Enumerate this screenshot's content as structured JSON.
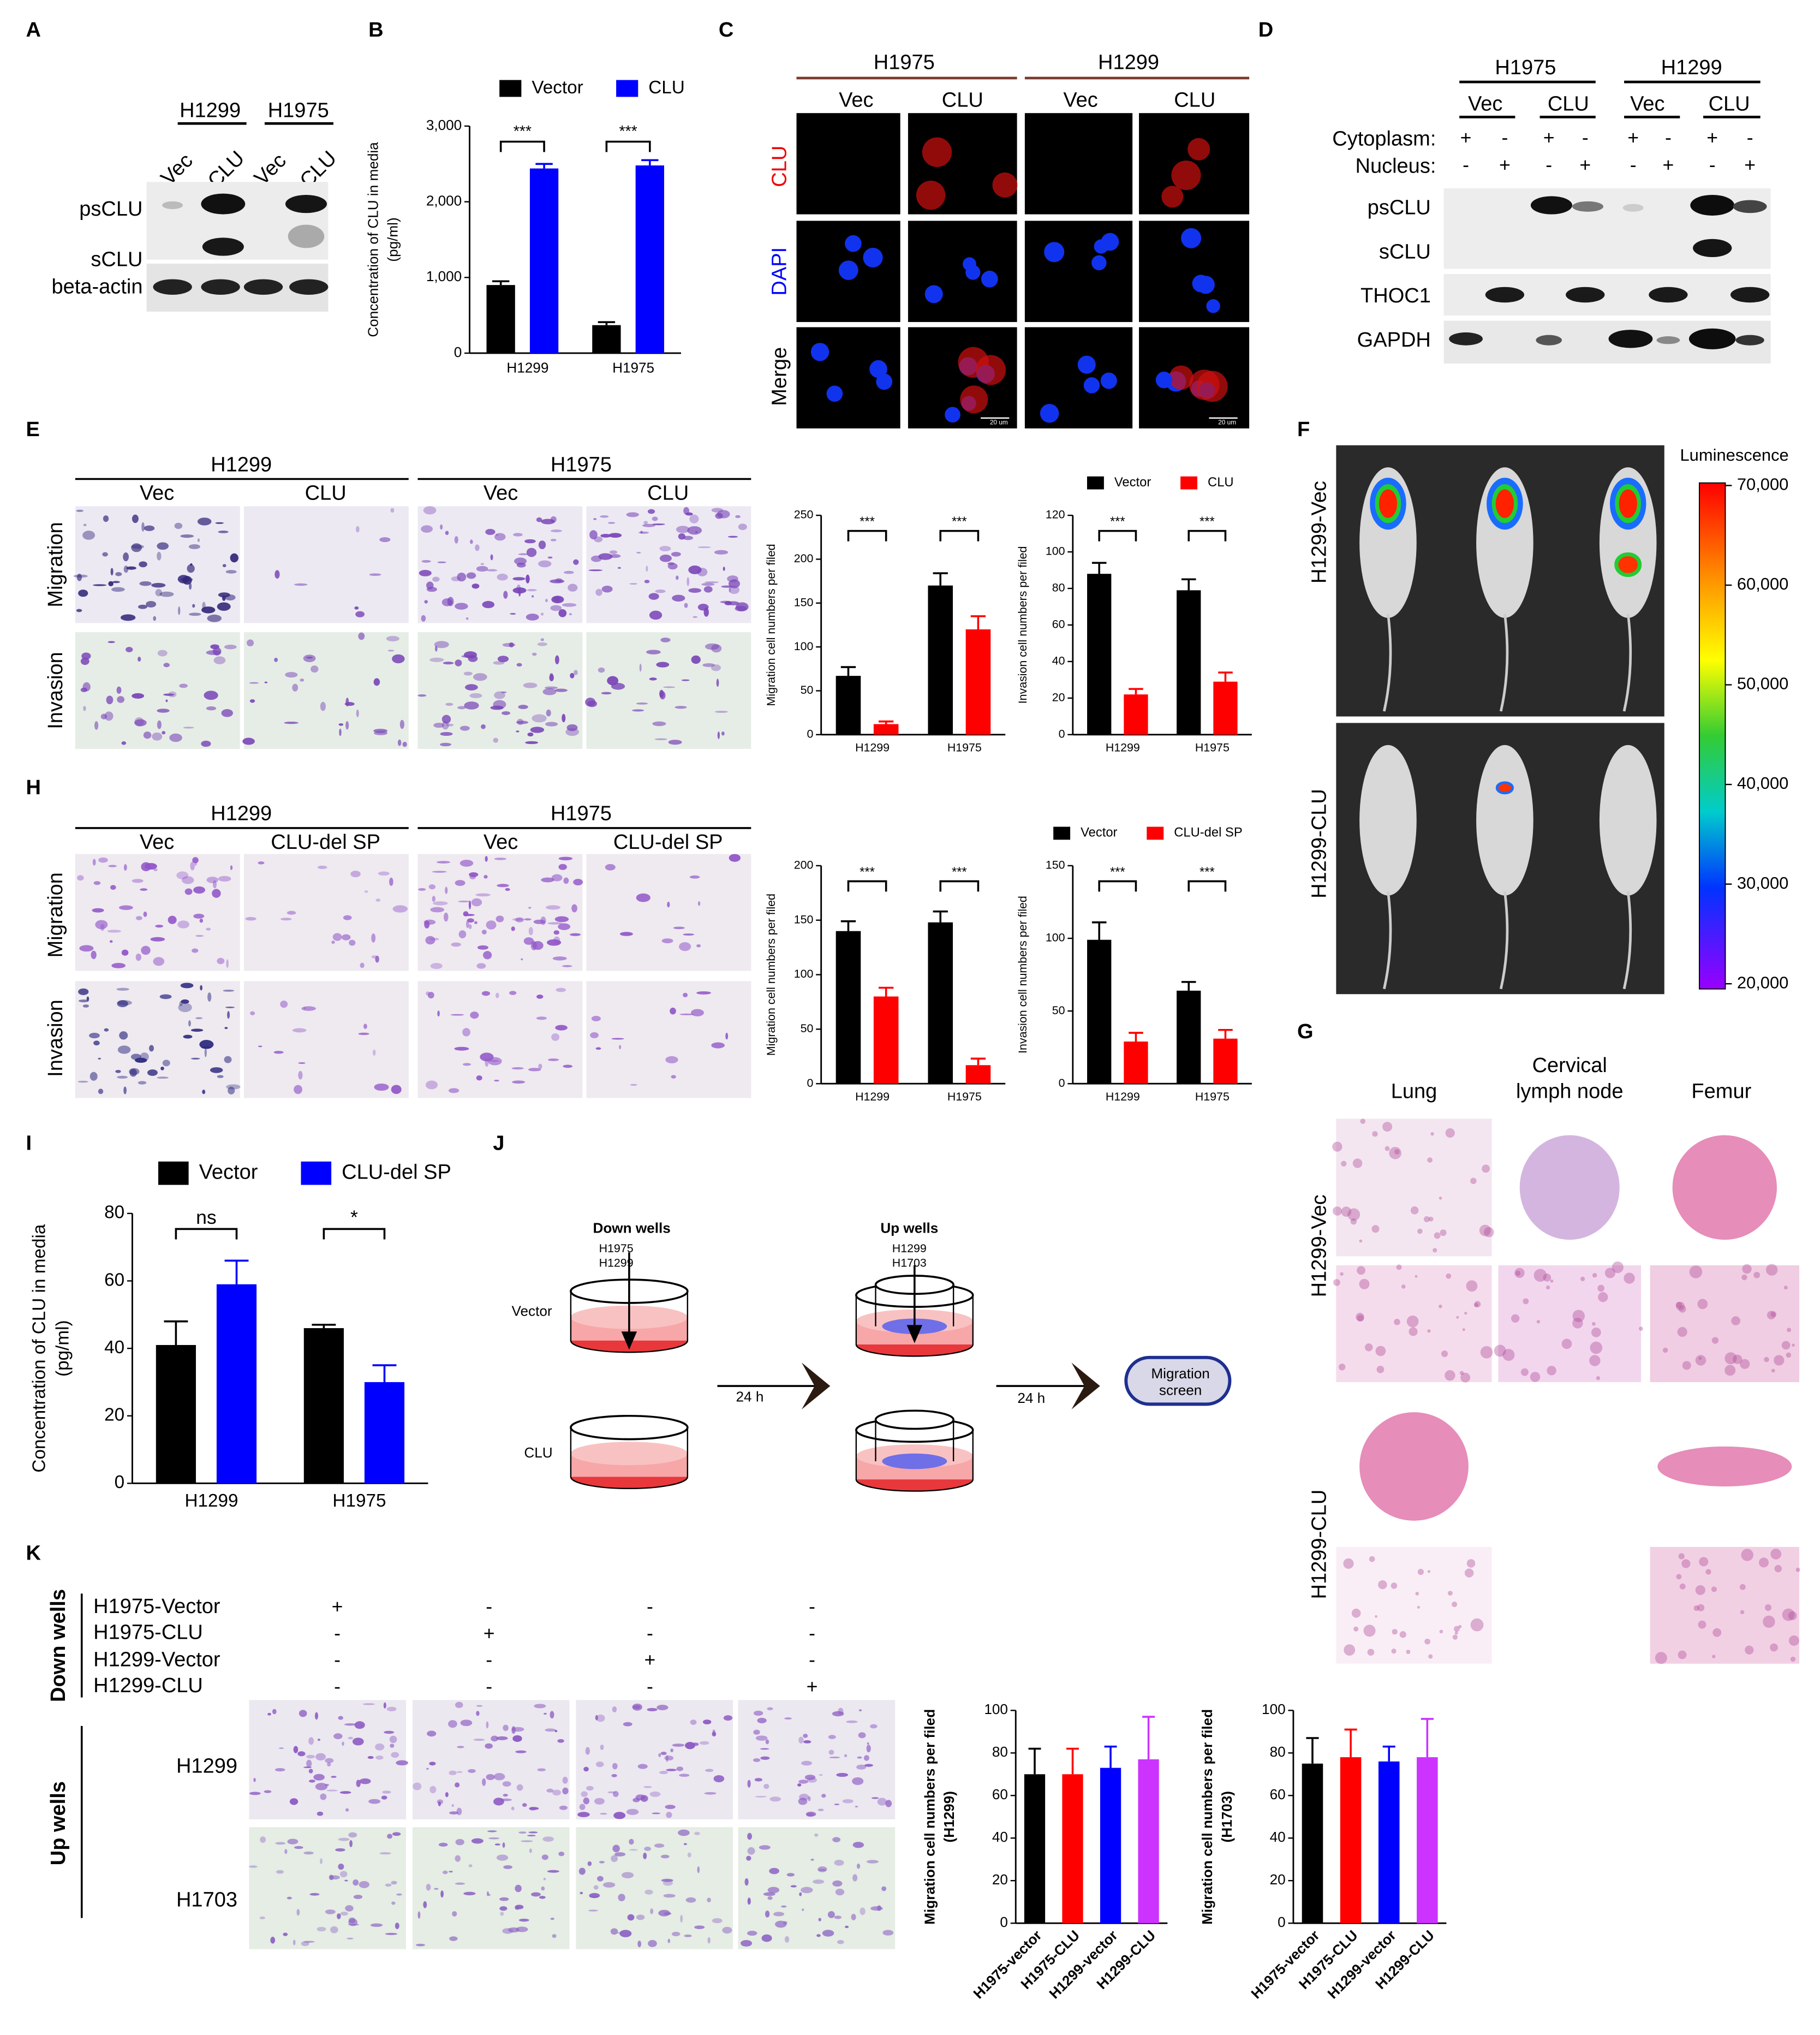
{
  "figure": {
    "panel_labels": [
      "A",
      "B",
      "C",
      "D",
      "E",
      "F",
      "G",
      "H",
      "I",
      "J",
      "K"
    ],
    "A": {
      "cell_lines": [
        "H1299",
        "H1975"
      ],
      "lanes": [
        "Vec",
        "CLU",
        "Vec",
        "CLU"
      ],
      "rows": [
        "psCLU",
        "sCLU",
        "beta-actin"
      ]
    },
    "C": {
      "cell_lines": [
        "H1975",
        "H1299"
      ],
      "groups": [
        "Vec",
        "CLU",
        "Vec",
        "CLU"
      ],
      "rows": [
        "CLU",
        "DAPI",
        "Merge"
      ],
      "scale": [
        "20 um",
        "20 um"
      ]
    },
    "D": {
      "cell_lines": [
        "H1975",
        "H1299"
      ],
      "groups": [
        "Vec",
        "CLU",
        "Vec",
        "CLU"
      ],
      "fractions": [
        "Cytoplasm:",
        "Nucleus:"
      ],
      "cytoplasm": [
        "+",
        "-",
        "+",
        "-",
        "+",
        "-",
        "+",
        "-"
      ],
      "nucleus": [
        "-",
        "+",
        "-",
        "+",
        "-",
        "+",
        "-",
        "+"
      ],
      "rows": [
        "psCLU",
        "sCLU",
        "THOC1",
        "GAPDH"
      ]
    },
    "E": {
      "cell_lines": [
        "H1299",
        "H1975"
      ],
      "groups": [
        "Vec",
        "CLU",
        "Vec",
        "CLU"
      ],
      "rows": [
        "Migration",
        "Invasion"
      ]
    },
    "F": {
      "rows": [
        "H1299-Vec",
        "H1299-CLU"
      ],
      "colorbar_title": "Luminescence",
      "colorbar_lim": [
        20000,
        70000
      ],
      "colorbar_ticks": [
        {
          "value": 70000,
          "label": "70,000"
        },
        {
          "value": 60000,
          "label": "60,000"
        },
        {
          "value": 50000,
          "label": "50,000"
        },
        {
          "value": 40000,
          "label": "40,000"
        },
        {
          "value": 30000,
          "label": "30,000"
        },
        {
          "value": 20000,
          "label": "20,000"
        }
      ]
    },
    "G": {
      "columns": [
        "Lung",
        [
          "Cervical",
          "lymph node"
        ],
        "Femur"
      ],
      "rows": [
        "H1299-Vec",
        "H1299-CLU"
      ]
    },
    "H": {
      "cell_lines": [
        "H1299",
        "H1975"
      ],
      "groups": [
        "Vec",
        "CLU-del SP",
        "Vec",
        "CLU-del SP"
      ],
      "rows": [
        "Migration",
        "Invasion"
      ]
    },
    "J": {
      "down_title": "Down wells",
      "down_lines": [
        "H1975",
        "H1299"
      ],
      "up_title": "Up wells",
      "up_lines": [
        "H1299",
        "H1703"
      ],
      "rows": [
        "Vector",
        "CLU"
      ],
      "time": [
        "24 h",
        "24 h"
      ],
      "result": [
        "Migration",
        "screen"
      ]
    },
    "K": {
      "down_title": "Down wells",
      "down_rows": [
        "H1975-Vector",
        "H1975-CLU",
        "H1299-Vector",
        "H1299-CLU"
      ],
      "signs": [
        [
          "+",
          "-",
          "-",
          "-"
        ],
        [
          "-",
          "+",
          "-",
          "-"
        ],
        [
          "-",
          "-",
          "+",
          "-"
        ],
        [
          "-",
          "-",
          "-",
          "+"
        ]
      ],
      "up_title": "Up wells",
      "up_rows": [
        "H1299",
        "H1703"
      ]
    }
  },
  "chart_data": [
    {
      "type": "bar",
      "categories": [
        "H1299",
        "H1975"
      ],
      "series": [
        {
          "name": "Vector",
          "color": "#000000",
          "values": [
            900,
            370
          ],
          "errors": [
            50,
            40
          ]
        },
        {
          "name": "CLU",
          "color": "#0000ff",
          "values": [
            2440,
            2480
          ],
          "errors": [
            60,
            70
          ]
        }
      ],
      "ylim": [
        0,
        3000
      ],
      "yticks": [
        0,
        {
          "value": 1000,
          "label": "1,000"
        },
        {
          "value": 2000,
          "label": "2,000"
        },
        {
          "value": 3000,
          "label": "3,000"
        }
      ],
      "ylabel": [
        "Concentration of CLU in media",
        "(pg/ml)"
      ],
      "annotations": [
        "***",
        "***"
      ],
      "legend": "top"
    },
    {
      "type": "bar",
      "categories": [
        "H1299",
        "H1975"
      ],
      "series": [
        {
          "name": "Vector",
          "color": "#000000",
          "values": [
            67,
            170
          ],
          "errors": [
            10,
            14
          ]
        },
        {
          "name": "CLU",
          "color": "#ff0000",
          "values": [
            12,
            120
          ],
          "errors": [
            3,
            15
          ]
        }
      ],
      "ylim": [
        0,
        250
      ],
      "yticks": [
        0,
        50,
        100,
        150,
        200,
        250
      ],
      "ylabel": [
        "Migration cell numbers per filed"
      ],
      "annotations": [
        "***",
        "***"
      ],
      "legend": false
    },
    {
      "type": "bar",
      "categories": [
        "H1299",
        "H1975"
      ],
      "series": [
        {
          "name": "Vector",
          "color": "#000000",
          "values": [
            88,
            79
          ],
          "errors": [
            6,
            6
          ]
        },
        {
          "name": "CLU",
          "color": "#ff0000",
          "values": [
            22,
            29
          ],
          "errors": [
            3,
            5
          ]
        }
      ],
      "ylim": [
        0,
        120
      ],
      "yticks": [
        0,
        20,
        40,
        60,
        80,
        100,
        120
      ],
      "ylabel": [
        "Invasion cell numbers per filed"
      ],
      "annotations": [
        "***",
        "***"
      ],
      "legend": "top"
    },
    {
      "type": "bar",
      "categories": [
        "H1299",
        "H1975"
      ],
      "series": [
        {
          "name": "Vector",
          "color": "#000000",
          "values": [
            140,
            148
          ],
          "errors": [
            9,
            10
          ]
        },
        {
          "name": "CLU-del SP",
          "color": "#ff0000",
          "values": [
            80,
            17
          ],
          "errors": [
            8,
            6
          ]
        }
      ],
      "ylim": [
        0,
        200
      ],
      "yticks": [
        0,
        50,
        100,
        150,
        200
      ],
      "ylabel": [
        "Migration cell numbers per filed"
      ],
      "annotations": [
        "***",
        "***"
      ],
      "legend": false
    },
    {
      "type": "bar",
      "categories": [
        "H1299",
        "H1975"
      ],
      "series": [
        {
          "name": "Vector",
          "color": "#000000",
          "values": [
            99,
            64
          ],
          "errors": [
            12,
            6
          ]
        },
        {
          "name": "CLU-del SP",
          "color": "#ff0000",
          "values": [
            29,
            31
          ],
          "errors": [
            6,
            6
          ]
        }
      ],
      "ylim": [
        0,
        150
      ],
      "yticks": [
        0,
        50,
        100,
        150
      ],
      "ylabel": [
        "Invasion cell numbers per filed"
      ],
      "annotations": [
        "***",
        "***"
      ],
      "legend": "top"
    },
    {
      "type": "bar",
      "categories": [
        "H1299",
        "H1975"
      ],
      "series": [
        {
          "name": "Vector",
          "color": "#000000",
          "values": [
            41,
            46
          ],
          "errors": [
            7,
            1
          ]
        },
        {
          "name": "CLU-del SP",
          "color": "#0000ff",
          "values": [
            59,
            30
          ],
          "errors": [
            7,
            5
          ]
        }
      ],
      "ylim": [
        0,
        80
      ],
      "yticks": [
        0,
        20,
        40,
        60,
        80
      ],
      "ylabel": [
        "Concentration of CLU in media",
        "(pg/ml)"
      ],
      "annotations": [
        "ns",
        "*"
      ],
      "legend": "top"
    },
    {
      "type": "bar",
      "categories": [
        "H1975-vector",
        "H1975-CLU",
        "H1299-vector",
        "H1299-CLU"
      ],
      "values": [
        70,
        70,
        73,
        77
      ],
      "errors": [
        12,
        12,
        10,
        20
      ],
      "colors": [
        "#000000",
        "#ff0000",
        "#0000ff",
        "#cc33ff"
      ],
      "ylim": [
        0,
        100
      ],
      "yticks": [
        0,
        20,
        40,
        60,
        80,
        100
      ],
      "ylabel": [
        "Migration cell numbers per filed",
        "(H1299)"
      ]
    },
    {
      "type": "bar",
      "categories": [
        "H1975-vector",
        "H1975-CLU",
        "H1299-vector",
        "H1299-CLU"
      ],
      "values": [
        75,
        78,
        76,
        78
      ],
      "errors": [
        12,
        13,
        7,
        18
      ],
      "colors": [
        "#000000",
        "#ff0000",
        "#0000ff",
        "#cc33ff"
      ],
      "ylim": [
        0,
        100
      ],
      "yticks": [
        0,
        20,
        40,
        60,
        80,
        100
      ],
      "ylabel": [
        "Migration cell numbers per filed",
        "(H1703)"
      ]
    }
  ]
}
